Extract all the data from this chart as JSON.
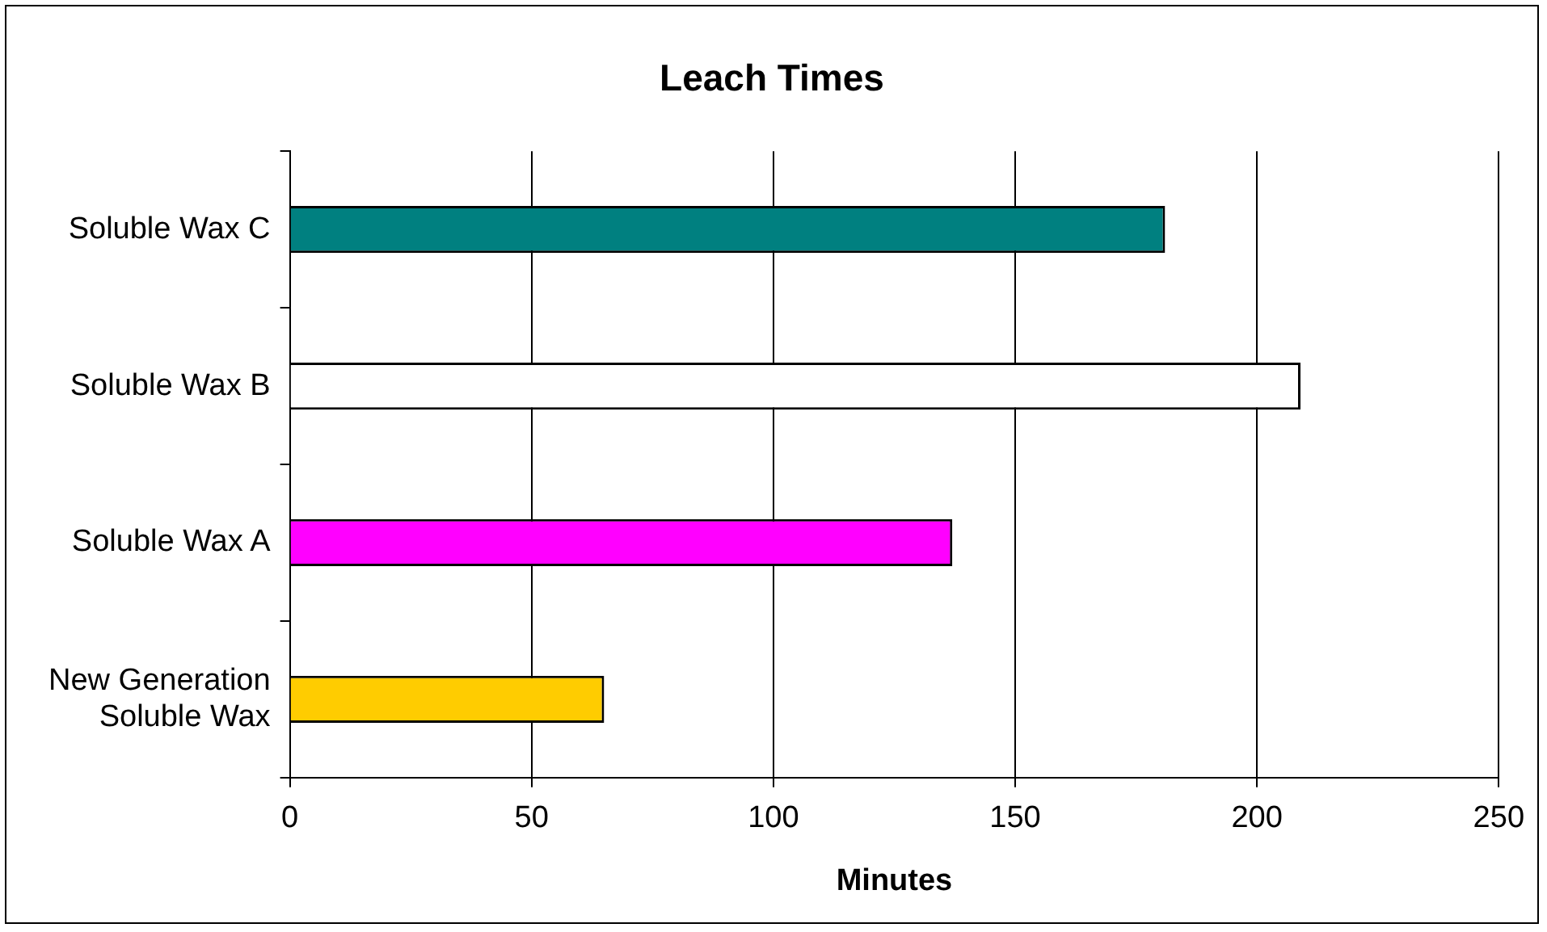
{
  "chart_data": {
    "type": "bar",
    "orientation": "horizontal",
    "title": "Leach Times",
    "xlabel": "Minutes",
    "categories": [
      "Soluble Wax C",
      "Soluble Wax B",
      "Soluble Wax A",
      "New Generation Soluble Wax"
    ],
    "values": [
      181,
      209,
      137,
      65
    ],
    "colors": [
      "#008080",
      "#ffffff",
      "#ff00ff",
      "#ffcc00"
    ],
    "xlim": [
      0,
      250
    ],
    "xticks": [
      0,
      50,
      100,
      150,
      200,
      250
    ],
    "grid": "x",
    "legend": false
  }
}
